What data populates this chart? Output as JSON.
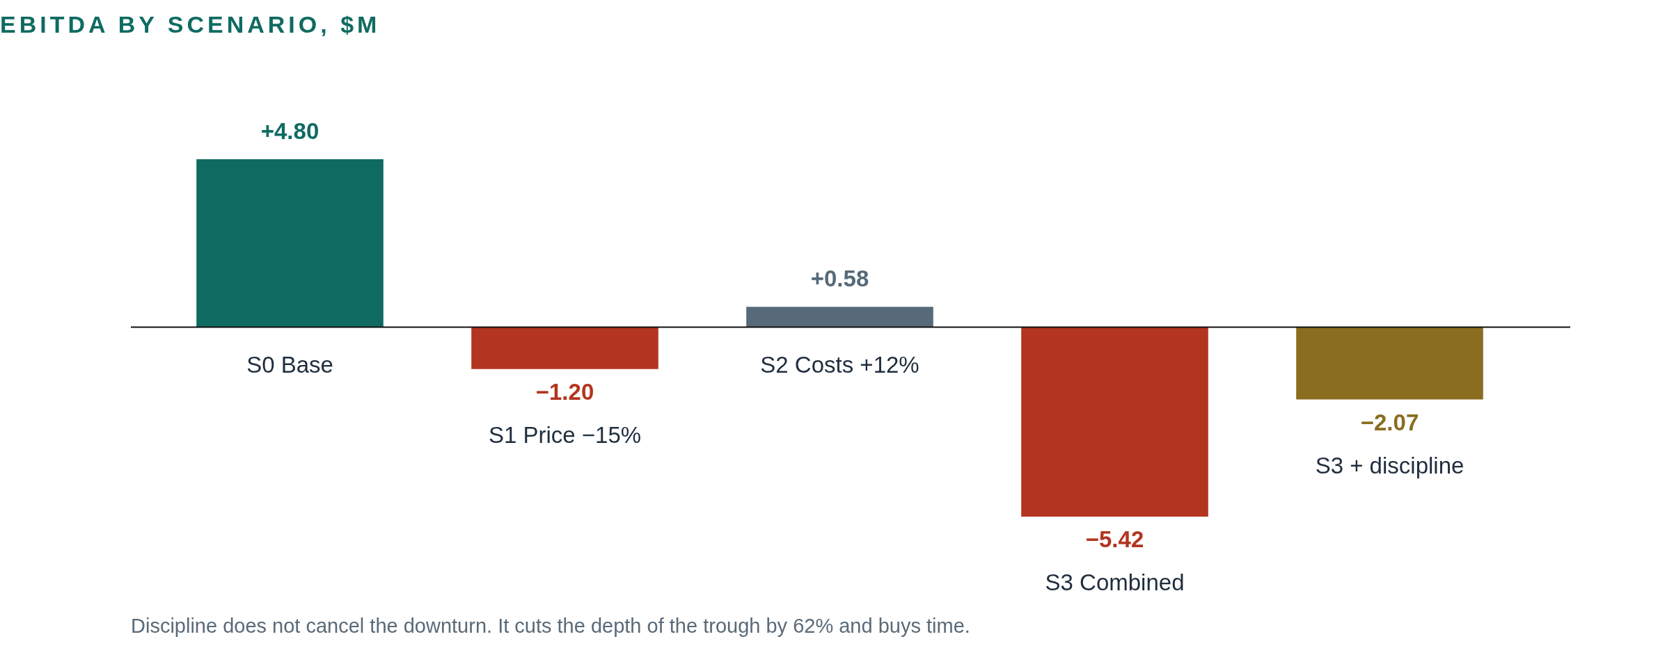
{
  "chart_data": {
    "type": "bar",
    "title": "EBITDA BY SCENARIO, $M",
    "categories": [
      "S0 Base",
      "S1 Price −15%",
      "S2 Costs +12%",
      "S3 Combined",
      "S3 + discipline"
    ],
    "values": [
      4.8,
      -1.2,
      0.58,
      -5.42,
      -2.07
    ],
    "colors": [
      "#0f6b62",
      "#b33520",
      "#566a78",
      "#b33520",
      "#8a6d1f"
    ],
    "value_labels": [
      "+4.80",
      "−1.20",
      "+0.58",
      "−5.42",
      "−2.07"
    ],
    "annotations": [
      "Discipline does not cancel the downturn. It cuts the depth of the trough by 62% and buys time."
    ]
  }
}
